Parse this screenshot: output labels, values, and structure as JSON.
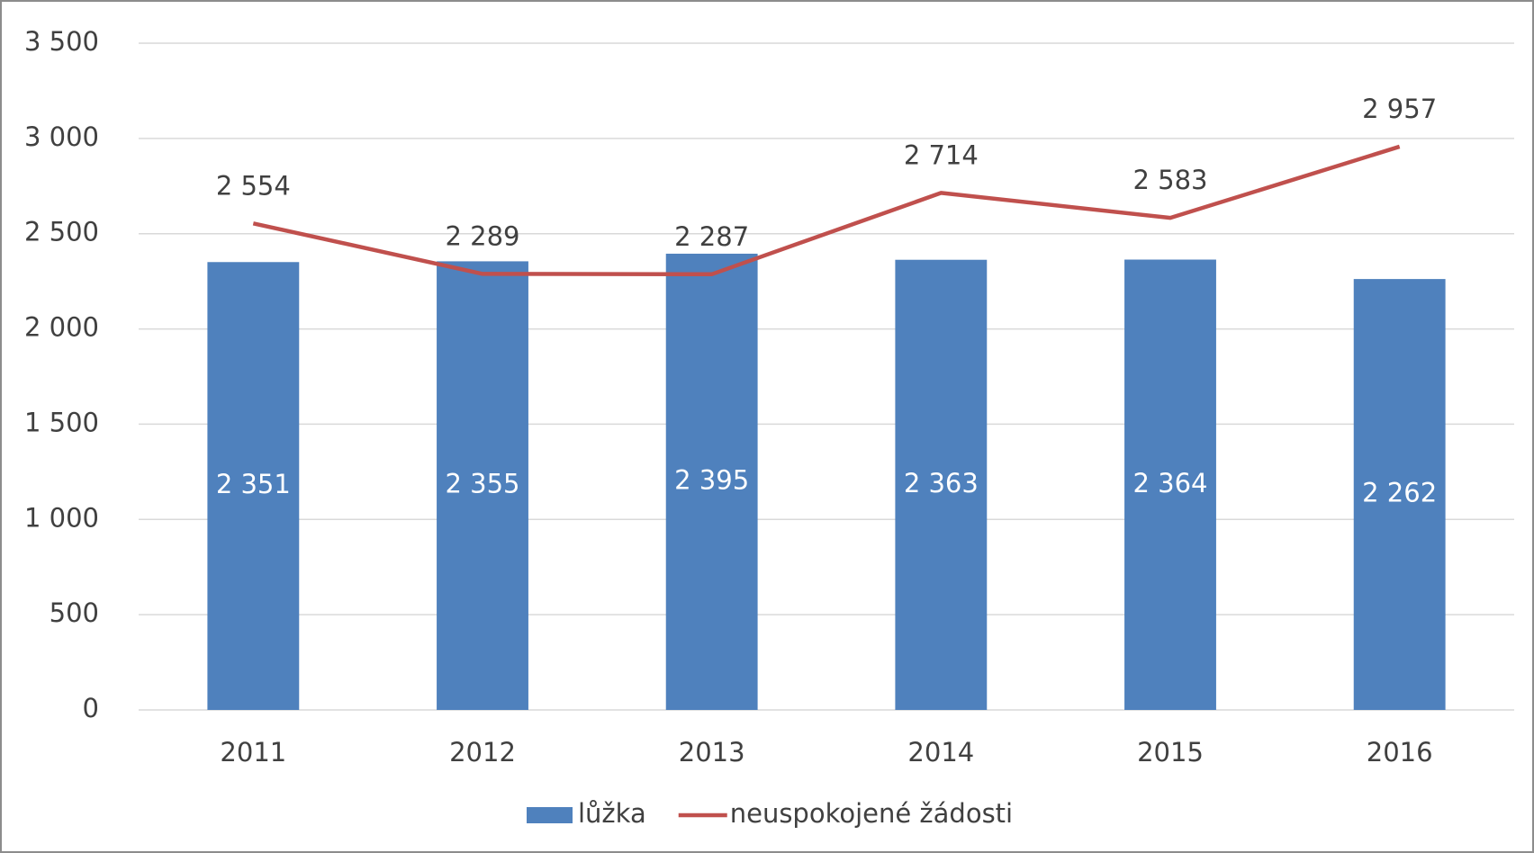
{
  "chart_data": {
    "type": "bar",
    "categories": [
      "2011",
      "2012",
      "2013",
      "2014",
      "2015",
      "2016"
    ],
    "series": [
      {
        "name": "lůžka",
        "type": "bar",
        "color": "#4f81bd",
        "values": [
          2351,
          2355,
          2395,
          2363,
          2364,
          2262
        ],
        "value_labels": [
          "2 351",
          "2 355",
          "2 395",
          "2 363",
          "2 364",
          "2 262"
        ]
      },
      {
        "name": "neuspokojené žádosti",
        "type": "line",
        "color": "#c0504d",
        "values": [
          2554,
          2289,
          2287,
          2714,
          2583,
          2957
        ],
        "value_labels": [
          "2 554",
          "2 289",
          "2 287",
          "2 714",
          "2 583",
          "2 957"
        ]
      }
    ],
    "ylim": [
      0,
      3500
    ],
    "yticks": [
      {
        "value": 0,
        "label": "0"
      },
      {
        "value": 500,
        "label": "500"
      },
      {
        "value": 1000,
        "label": "1 000"
      },
      {
        "value": 1500,
        "label": "1 500"
      },
      {
        "value": 2000,
        "label": "2 000"
      },
      {
        "value": 2500,
        "label": "2 500"
      },
      {
        "value": 3000,
        "label": "3 000"
      },
      {
        "value": 3500,
        "label": "3 500"
      }
    ],
    "grid": true,
    "legend": "bottom"
  }
}
